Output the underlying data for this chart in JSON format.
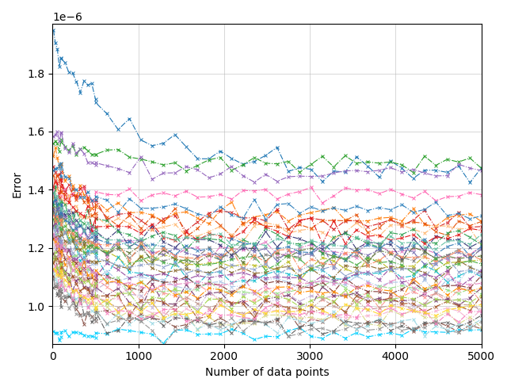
{
  "xlabel": "Number of data points",
  "ylabel": "Error",
  "xlim": [
    0,
    5000
  ],
  "ylim": [
    8.7e-07,
    1.97e-06
  ],
  "yticks": [
    1e-06,
    1.2e-06,
    1.4e-06,
    1.6e-06,
    1.8e-06
  ],
  "x_ticks": [
    0,
    1000,
    2000,
    3000,
    4000,
    5000
  ],
  "grid": true,
  "scale": 1e-06,
  "lines": [
    {
      "color": "#1f77b4",
      "base": 1.48,
      "start": 1.91,
      "tau": 800,
      "noise": 0.025
    },
    {
      "color": "#00cfff",
      "base": 0.905,
      "start": 0.905,
      "tau": 99999,
      "noise": 0.01
    },
    {
      "color": "#2ca02c",
      "base": 1.49,
      "start": 1.56,
      "tau": 600,
      "noise": 0.015
    },
    {
      "color": "#9467bd",
      "base": 1.455,
      "start": 1.62,
      "tau": 400,
      "noise": 0.018
    },
    {
      "color": "#ff69b4",
      "base": 1.355,
      "start": 1.385,
      "tau": 99999,
      "noise": 0.015
    },
    {
      "color": "#ff7f0e",
      "base": 1.31,
      "start": 1.52,
      "tau": 350,
      "noise": 0.02
    },
    {
      "color": "#d62728",
      "base": 1.29,
      "start": 1.49,
      "tau": 350,
      "noise": 0.02
    },
    {
      "color": "#8c564b",
      "base": 0.945,
      "start": 1.1,
      "tau": 300,
      "noise": 0.018
    },
    {
      "color": "#e377c2",
      "base": 1.19,
      "start": 1.38,
      "tau": 350,
      "noise": 0.018
    },
    {
      "color": "#7f7f7f",
      "base": 1.17,
      "start": 1.35,
      "tau": 350,
      "noise": 0.018
    },
    {
      "color": "#bcbd22",
      "base": 1.14,
      "start": 1.33,
      "tau": 350,
      "noise": 0.018
    },
    {
      "color": "#17becf",
      "base": 1.11,
      "start": 1.31,
      "tau": 350,
      "noise": 0.018
    },
    {
      "color": "#aec7e8",
      "base": 1.08,
      "start": 1.28,
      "tau": 350,
      "noise": 0.018
    },
    {
      "color": "#ffbb78",
      "base": 1.26,
      "start": 1.43,
      "tau": 350,
      "noise": 0.02
    },
    {
      "color": "#98df8a",
      "base": 1.06,
      "start": 1.26,
      "tau": 350,
      "noise": 0.018
    },
    {
      "color": "#ff9896",
      "base": 1.04,
      "start": 1.24,
      "tau": 350,
      "noise": 0.018
    },
    {
      "color": "#c5b0d5",
      "base": 1.02,
      "start": 1.22,
      "tau": 350,
      "noise": 0.018
    },
    {
      "color": "#c49c94",
      "base": 1.0,
      "start": 1.2,
      "tau": 350,
      "noise": 0.018
    },
    {
      "color": "#f7b6d2",
      "base": 0.975,
      "start": 1.17,
      "tau": 350,
      "noise": 0.018
    },
    {
      "color": "#dbdb8d",
      "base": 0.96,
      "start": 1.14,
      "tau": 350,
      "noise": 0.018
    },
    {
      "color": "#9edae5",
      "base": 0.94,
      "start": 1.12,
      "tau": 350,
      "noise": 0.018
    },
    {
      "color": "#393b79",
      "base": 1.22,
      "start": 1.38,
      "tau": 350,
      "noise": 0.02
    },
    {
      "color": "#637939",
      "base": 1.17,
      "start": 1.33,
      "tau": 350,
      "noise": 0.02
    },
    {
      "color": "#8c6d31",
      "base": 1.12,
      "start": 1.28,
      "tau": 350,
      "noise": 0.02
    },
    {
      "color": "#843c39",
      "base": 1.07,
      "start": 1.23,
      "tau": 350,
      "noise": 0.02
    },
    {
      "color": "#7b4173",
      "base": 1.02,
      "start": 1.18,
      "tau": 350,
      "noise": 0.02
    },
    {
      "color": "#3182bd",
      "base": 1.33,
      "start": 1.48,
      "tau": 400,
      "noise": 0.018
    },
    {
      "color": "#e6550d",
      "base": 1.28,
      "start": 1.44,
      "tau": 400,
      "noise": 0.02
    },
    {
      "color": "#31a354",
      "base": 1.23,
      "start": 1.39,
      "tau": 400,
      "noise": 0.02
    },
    {
      "color": "#756bb1",
      "base": 1.18,
      "start": 1.34,
      "tau": 400,
      "noise": 0.02
    },
    {
      "color": "#636363",
      "base": 0.935,
      "start": 1.08,
      "tau": 300,
      "noise": 0.018
    },
    {
      "color": "#e41a1c",
      "base": 1.25,
      "start": 1.42,
      "tau": 350,
      "noise": 0.02
    },
    {
      "color": "#377eb8",
      "base": 1.2,
      "start": 1.37,
      "tau": 350,
      "noise": 0.02
    },
    {
      "color": "#4daf4a",
      "base": 1.15,
      "start": 1.32,
      "tau": 350,
      "noise": 0.02
    },
    {
      "color": "#984ea3",
      "base": 1.1,
      "start": 1.27,
      "tau": 350,
      "noise": 0.02
    },
    {
      "color": "#ff8c00",
      "base": 1.05,
      "start": 1.22,
      "tau": 350,
      "noise": 0.02
    },
    {
      "color": "#a65628",
      "base": 1.0,
      "start": 1.17,
      "tau": 350,
      "noise": 0.02
    },
    {
      "color": "#f781bf",
      "base": 0.97,
      "start": 1.13,
      "tau": 350,
      "noise": 0.018
    },
    {
      "color": "#999999",
      "base": 0.93,
      "start": 1.09,
      "tau": 300,
      "noise": 0.018
    },
    {
      "color": "#66c2a5",
      "base": 1.22,
      "start": 1.38,
      "tau": 350,
      "noise": 0.018
    },
    {
      "color": "#fc8d62",
      "base": 1.17,
      "start": 1.33,
      "tau": 350,
      "noise": 0.018
    },
    {
      "color": "#8da0cb",
      "base": 1.12,
      "start": 1.28,
      "tau": 350,
      "noise": 0.018
    },
    {
      "color": "#e78ac3",
      "base": 1.07,
      "start": 1.23,
      "tau": 350,
      "noise": 0.018
    },
    {
      "color": "#a6d854",
      "base": 1.02,
      "start": 1.18,
      "tau": 350,
      "noise": 0.018
    },
    {
      "color": "#ffd92f",
      "base": 0.98,
      "start": 1.14,
      "tau": 300,
      "noise": 0.018
    }
  ]
}
